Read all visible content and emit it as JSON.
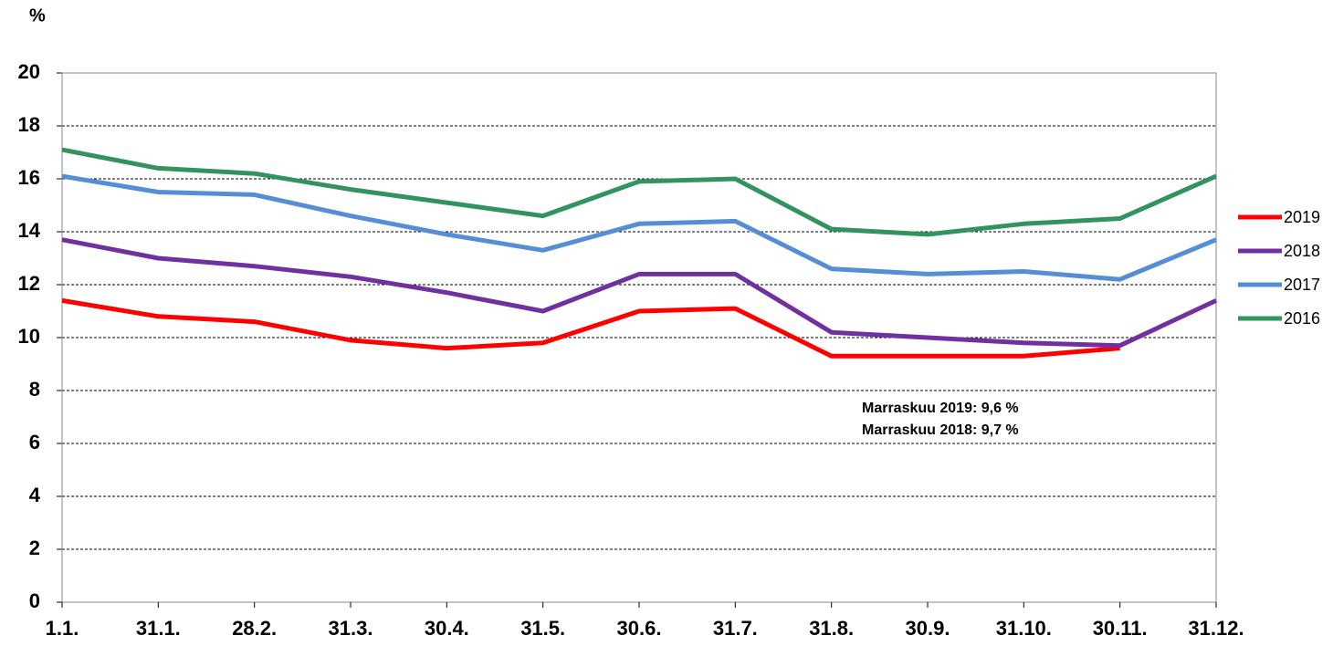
{
  "chart_data": {
    "type": "line",
    "y_unit": "%",
    "categories": [
      "1.1.",
      "31.1.",
      "28.2.",
      "31.3.",
      "30.4.",
      "31.5.",
      "30.6.",
      "31.7.",
      "31.8.",
      "30.9.",
      "31.10.",
      "30.11.",
      "31.12."
    ],
    "series": [
      {
        "name": "2019",
        "color": "#ff0000",
        "values": [
          11.4,
          10.8,
          10.6,
          9.9,
          9.6,
          9.8,
          11.0,
          11.1,
          9.3,
          9.3,
          9.3,
          9.6,
          null
        ]
      },
      {
        "name": "2018",
        "color": "#7030a0",
        "values": [
          13.7,
          13.0,
          12.7,
          12.3,
          11.7,
          11.0,
          12.4,
          12.4,
          10.2,
          10.0,
          9.8,
          9.7,
          11.4
        ]
      },
      {
        "name": "2017",
        "color": "#558ed5",
        "values": [
          16.1,
          15.5,
          15.4,
          14.6,
          13.9,
          13.3,
          14.3,
          14.4,
          12.6,
          12.4,
          12.5,
          12.2,
          13.7
        ]
      },
      {
        "name": "2016",
        "color": "#31935e",
        "values": [
          17.1,
          16.4,
          16.2,
          15.6,
          15.1,
          14.6,
          15.9,
          16.0,
          14.1,
          13.9,
          14.3,
          14.5,
          16.1
        ]
      }
    ],
    "ylim": [
      0,
      20
    ],
    "yticks": [
      0,
      2,
      4,
      6,
      8,
      10,
      12,
      14,
      16,
      18,
      20
    ],
    "grid": true,
    "legend": "right",
    "annotations": [
      "Marraskuu 2019: 9,6 %",
      "Marraskuu 2018: 9,7 %"
    ]
  }
}
